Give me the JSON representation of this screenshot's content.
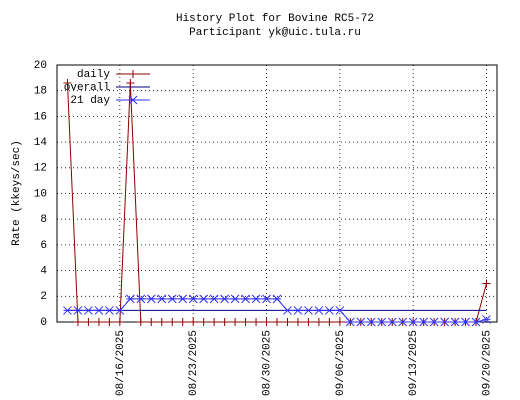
{
  "chart_data": {
    "type": "line",
    "title": "History Plot for Bovine RC5-72",
    "subtitle": "Participant yk@uic.tula.ru",
    "y_label": "Rate (kkeys/sec)",
    "x": [
      "2025-08-11",
      "2025-08-12",
      "2025-08-13",
      "2025-08-14",
      "2025-08-15",
      "2025-08-16",
      "2025-08-17",
      "2025-08-18",
      "2025-08-19",
      "2025-08-20",
      "2025-08-21",
      "2025-08-22",
      "2025-08-23",
      "2025-08-24",
      "2025-08-25",
      "2025-08-26",
      "2025-08-27",
      "2025-08-28",
      "2025-08-29",
      "2025-08-30",
      "2025-08-31",
      "2025-09-01",
      "2025-09-02",
      "2025-09-03",
      "2025-09-04",
      "2025-09-05",
      "2025-09-06",
      "2025-09-07",
      "2025-09-08",
      "2025-09-09",
      "2025-09-10",
      "2025-09-11",
      "2025-09-12",
      "2025-09-13",
      "2025-09-14",
      "2025-09-15",
      "2025-09-16",
      "2025-09-17",
      "2025-09-18",
      "2025-09-19",
      "2025-09-20"
    ],
    "series": [
      {
        "name": "daily",
        "color": "#8b0000",
        "marker": "plus",
        "values": [
          18.6,
          0,
          0,
          0,
          0,
          0,
          18.6,
          0,
          0,
          0,
          0,
          0,
          0,
          0,
          0,
          0,
          0,
          0,
          0,
          0,
          0,
          0,
          0,
          0,
          0,
          0,
          0,
          0,
          0,
          0,
          0,
          0,
          0,
          0,
          0,
          0,
          0,
          0,
          0,
          0,
          3.0
        ]
      },
      {
        "name": "overall",
        "color": "#000080",
        "marker": "none",
        "values": [
          0.9,
          0.9,
          0.9,
          0.9,
          0.9,
          0.9,
          0.9,
          0.9,
          0.9,
          0.9,
          0.9,
          0.9,
          0.9,
          0.9,
          0.9,
          0.9,
          0.9,
          0.9,
          0.9,
          0.9,
          0.9,
          0.9,
          0.9,
          0.9,
          0.9,
          0.9,
          0.9,
          0.9,
          0.9,
          0.9,
          0.9,
          0.9,
          0.9,
          0.9,
          0.9,
          0.9,
          0.9,
          0.9,
          0.9,
          0.9,
          0.9
        ]
      },
      {
        "name": "21 day",
        "color": "#3030ff",
        "marker": "cross",
        "values": [
          0.9,
          0.9,
          0.9,
          0.9,
          0.9,
          0.9,
          1.8,
          1.8,
          1.8,
          1.8,
          1.8,
          1.8,
          1.8,
          1.8,
          1.8,
          1.8,
          1.8,
          1.8,
          1.8,
          1.8,
          1.8,
          0.9,
          0.9,
          0.9,
          0.9,
          0.9,
          0.9,
          0,
          0,
          0,
          0,
          0,
          0,
          0,
          0,
          0,
          0,
          0,
          0,
          0,
          0.2
        ]
      }
    ],
    "xlim": [
      "2025-08-10",
      "2025-09-21"
    ],
    "xticks": [
      {
        "value": "2025-08-16",
        "label": "08/16/2025"
      },
      {
        "value": "2025-08-23",
        "label": "08/23/2025"
      },
      {
        "value": "2025-08-30",
        "label": "08/30/2025"
      },
      {
        "value": "2025-09-06",
        "label": "09/06/2025"
      },
      {
        "value": "2025-09-13",
        "label": "09/13/2025"
      },
      {
        "value": "2025-09-20",
        "label": "09/20/2025"
      }
    ],
    "ylim": [
      0,
      20
    ],
    "yticks": [
      0,
      2,
      4,
      6,
      8,
      10,
      12,
      14,
      16,
      18,
      20
    ],
    "grid": true,
    "legend": "top-left"
  }
}
